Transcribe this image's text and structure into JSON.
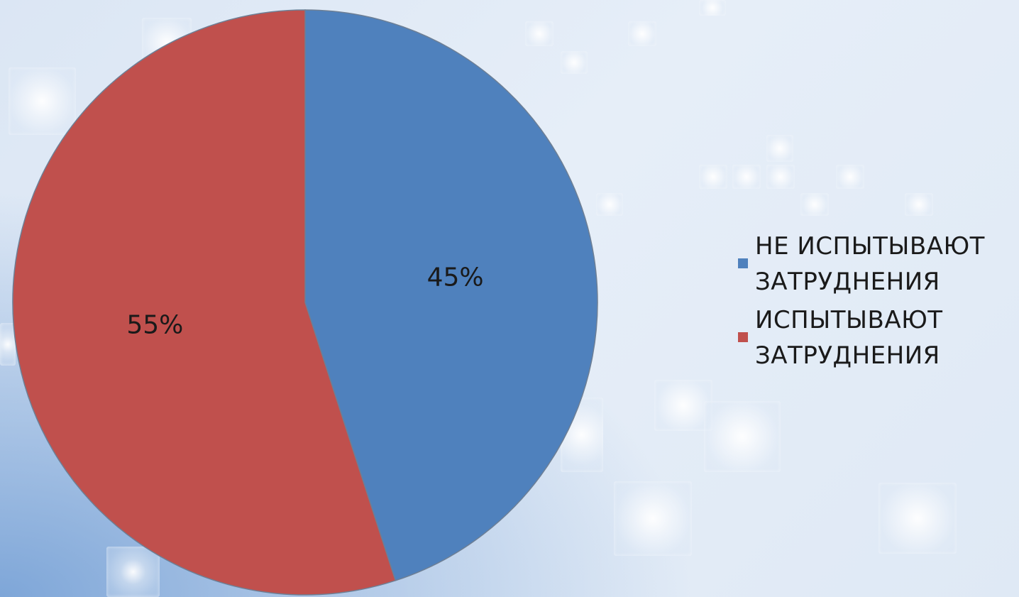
{
  "chart_data": {
    "type": "pie",
    "title": "",
    "start_angle_deg": 0,
    "direction": "clockwise",
    "legend_position": "right",
    "slices": [
      {
        "label": "НЕ ИСПЫТЫВАЮТ\nЗАТРУДНЕНИЯ",
        "value": 45,
        "display": "45%",
        "color": "#4f81bd"
      },
      {
        "label": "ИСПЫТЫВАЮТ\nЗАТРУДНЕНИЯ",
        "value": 55,
        "display": "55%",
        "color": "#c0504d"
      }
    ]
  }
}
